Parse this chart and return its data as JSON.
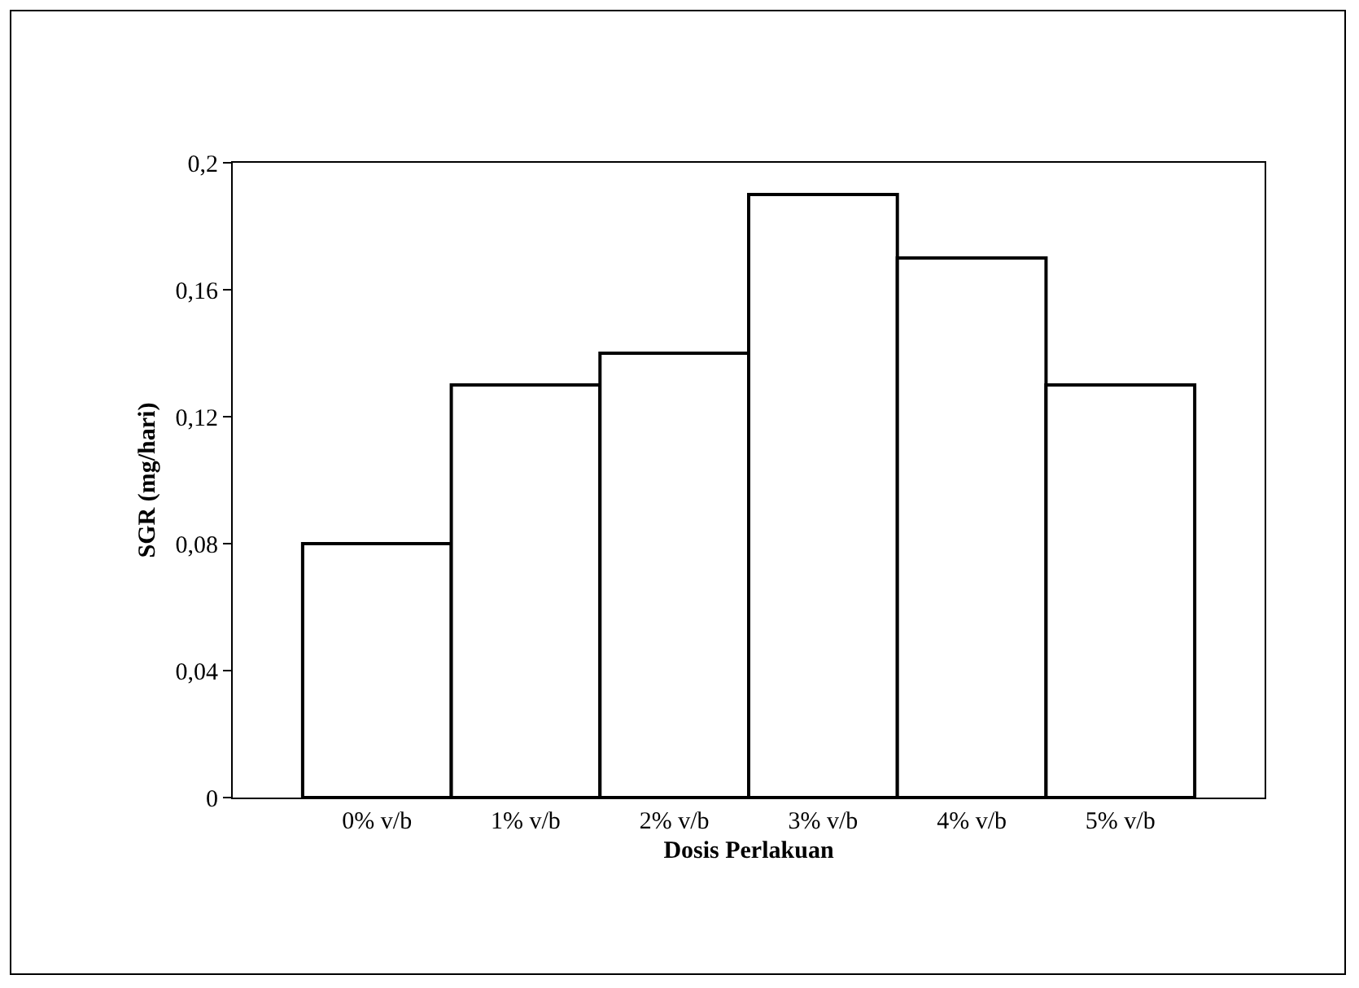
{
  "chart_data": {
    "type": "bar",
    "xlabel": "Dosis Perlakuan",
    "ylabel": "SGR (mg/hari)",
    "categories": [
      "0% v/b",
      "1% v/b",
      "2% v/b",
      "3% v/b",
      "4% v/b",
      "5% v/b"
    ],
    "values": [
      0.08,
      0.13,
      0.14,
      0.19,
      0.17,
      0.13
    ],
    "color": "#ffffff",
    "ylim": [
      0,
      0.2
    ],
    "yticks": [
      {
        "value": 0,
        "label": "0"
      },
      {
        "value": 0.04,
        "label": "0,04"
      },
      {
        "value": 0.08,
        "label": "0,08"
      },
      {
        "value": 0.12,
        "label": "0,12"
      },
      {
        "value": 0.16,
        "label": "0,16"
      },
      {
        "value": 0.2,
        "label": "0,2"
      }
    ],
    "grid": false
  }
}
